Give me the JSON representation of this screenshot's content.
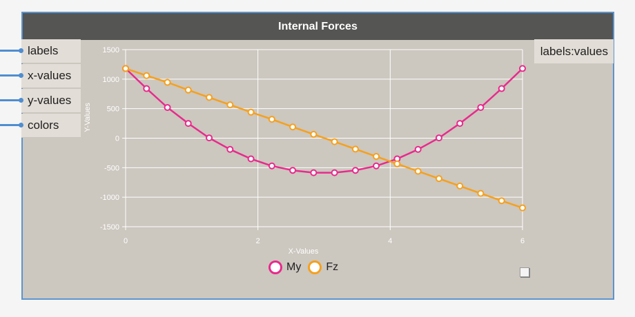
{
  "node": {
    "title": "Internal Forces"
  },
  "inputs": [
    {
      "label": "labels"
    },
    {
      "label": "x-values"
    },
    {
      "label": "y-values"
    },
    {
      "label": "colors"
    }
  ],
  "output": {
    "label": "labels:values"
  },
  "colors": {
    "node_border": "#5a94cf",
    "header": "#555553",
    "canvas": "#ccc7bf",
    "port": "#e2ddd6"
  },
  "chart_data": {
    "type": "line",
    "xlabel": "X-Values",
    "ylabel": "Y-Values",
    "xlim": [
      0,
      6
    ],
    "ylim": [
      -1500,
      1500
    ],
    "xticks": [
      "0",
      "2",
      "4",
      "6"
    ],
    "yticks": [
      "1500",
      "1000",
      "500",
      "0",
      "-500",
      "-1000",
      "-1500"
    ],
    "grid": true,
    "legend_position": "bottom-center",
    "series": [
      {
        "name": "My",
        "color": "#e82a8c",
        "x": [
          0,
          0.316,
          0.632,
          0.947,
          1.263,
          1.579,
          1.895,
          2.211,
          2.526,
          2.842,
          3.158,
          3.474,
          3.789,
          4.105,
          4.421,
          4.737,
          5.053,
          5.368,
          5.684,
          6.0
        ],
        "values": [
          1180,
          840,
          520,
          250,
          5,
          -190,
          -350,
          -470,
          -545,
          -585,
          -585,
          -545,
          -470,
          -350,
          -190,
          5,
          250,
          520,
          840,
          1180
        ]
      },
      {
        "name": "Fz",
        "color": "#f6a01c",
        "x": [
          0,
          0.316,
          0.632,
          0.947,
          1.263,
          1.579,
          1.895,
          2.211,
          2.526,
          2.842,
          3.158,
          3.474,
          3.789,
          4.105,
          4.421,
          4.737,
          5.053,
          5.368,
          5.684,
          6.0
        ],
        "values": [
          1180,
          1060,
          945,
          815,
          690,
          565,
          440,
          320,
          190,
          65,
          -60,
          -185,
          -310,
          -435,
          -560,
          -685,
          -810,
          -935,
          -1060,
          -1180
        ]
      }
    ]
  }
}
